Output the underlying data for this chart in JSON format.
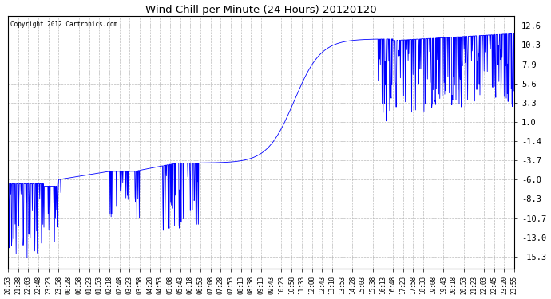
{
  "title": "Wind Chill per Minute (24 Hours) 20120120",
  "copyright_text": "Copyright 2012 Cartronics.com",
  "line_color": "#0000FF",
  "background_color": "#FFFFFF",
  "plot_bg_color": "#FFFFFF",
  "grid_color": "#AAAAAA",
  "yticks": [
    12.6,
    10.3,
    7.9,
    5.6,
    3.3,
    1.0,
    -1.4,
    -3.7,
    -6.0,
    -8.3,
    -10.7,
    -13.0,
    -15.3
  ],
  "ylim": [
    -16.8,
    13.8
  ],
  "xtick_labels": [
    "20:53",
    "21:38",
    "22:03",
    "22:48",
    "23:23",
    "23:58",
    "00:28",
    "00:58",
    "01:23",
    "01:53",
    "02:18",
    "02:48",
    "03:23",
    "03:58",
    "04:28",
    "04:53",
    "05:08",
    "05:43",
    "06:18",
    "06:53",
    "07:08",
    "07:28",
    "07:53",
    "08:13",
    "08:38",
    "09:13",
    "09:43",
    "10:23",
    "10:58",
    "11:33",
    "12:08",
    "12:43",
    "13:18",
    "13:53",
    "14:28",
    "15:03",
    "15:38",
    "16:13",
    "16:48",
    "17:23",
    "17:58",
    "18:33",
    "19:08",
    "19:43",
    "20:18",
    "20:53",
    "21:23",
    "22:03",
    "22:45",
    "23:20",
    "23:55"
  ]
}
